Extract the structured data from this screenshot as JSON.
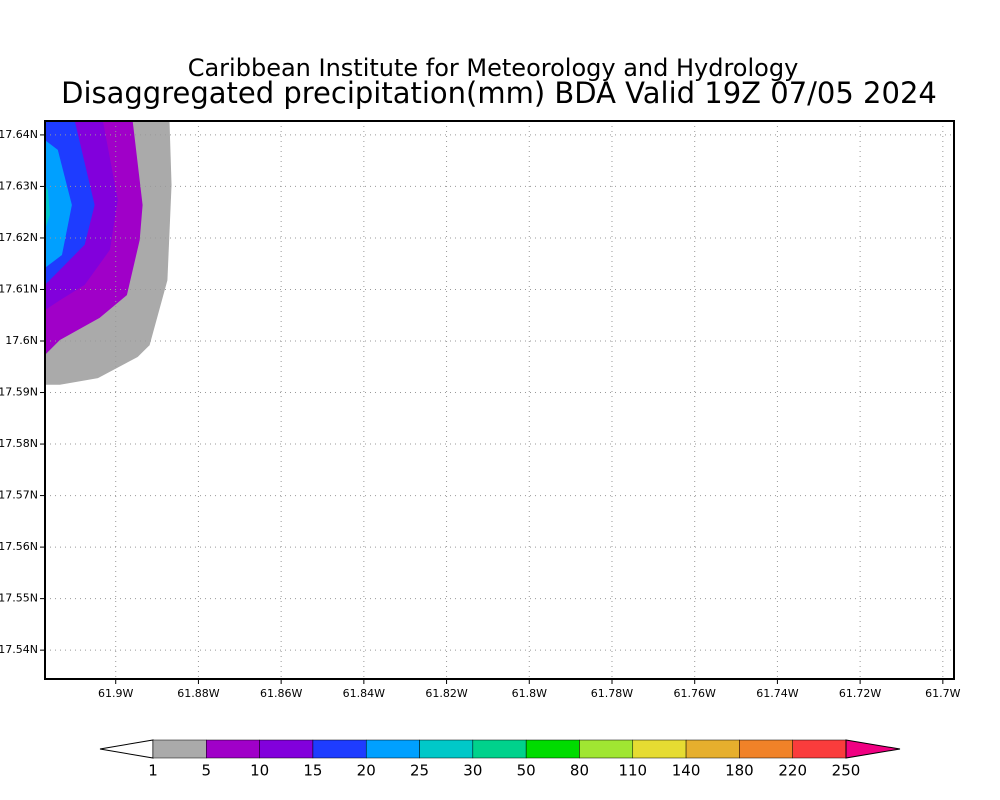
{
  "chart_data": {
    "type": "contour",
    "title": "Caribbean Institute for Meteorology and Hydrology",
    "subtitle": "Disaggregated precipitation(mm) BDA Valid 19Z 07/05 2024",
    "xlim": [
      -61.9171,
      -61.6973
    ],
    "ylim": [
      17.5344,
      17.6427
    ],
    "xticks": [
      {
        "value": -61.9,
        "label": "61.9W"
      },
      {
        "value": -61.88,
        "label": "61.88W"
      },
      {
        "value": -61.86,
        "label": "61.86W"
      },
      {
        "value": -61.84,
        "label": "61.84W"
      },
      {
        "value": -61.82,
        "label": "61.82W"
      },
      {
        "value": -61.8,
        "label": "61.8W"
      },
      {
        "value": -61.78,
        "label": "61.78W"
      },
      {
        "value": -61.76,
        "label": "61.76W"
      },
      {
        "value": -61.74,
        "label": "61.74W"
      },
      {
        "value": -61.72,
        "label": "61.72W"
      },
      {
        "value": -61.7,
        "label": "61.7W"
      }
    ],
    "yticks": [
      {
        "value": 17.64,
        "label": "17.64N"
      },
      {
        "value": 17.63,
        "label": "17.63N"
      },
      {
        "value": 17.62,
        "label": "17.62N"
      },
      {
        "value": 17.61,
        "label": "17.61N"
      },
      {
        "value": 17.6,
        "label": "17.6N"
      },
      {
        "value": 17.59,
        "label": "17.59N"
      },
      {
        "value": 17.58,
        "label": "17.58N"
      },
      {
        "value": 17.57,
        "label": "17.57N"
      },
      {
        "value": 17.56,
        "label": "17.56N"
      },
      {
        "value": 17.55,
        "label": "17.55N"
      },
      {
        "value": 17.54,
        "label": "17.54N"
      }
    ],
    "grid": true,
    "regions": [
      {
        "color": "#aaaaaa",
        "lon": [
          -61.9171,
          -61.887,
          -61.8865,
          -61.8875,
          -61.8918,
          -61.8947,
          -61.9043,
          -61.9135,
          -61.9171
        ],
        "lat": [
          17.6427,
          17.6427,
          17.6303,
          17.6118,
          17.5992,
          17.5969,
          17.5928,
          17.5915,
          17.5915
        ]
      },
      {
        "color": "#a000c8",
        "lon": [
          -61.9171,
          -61.8959,
          -61.8935,
          -61.8942,
          -61.8973,
          -61.9039,
          -61.9135,
          -61.9171
        ],
        "lat": [
          17.6427,
          17.6427,
          17.6264,
          17.6196,
          17.6089,
          17.6045,
          17.6002,
          17.5973
        ]
      },
      {
        "color": "#8200dc",
        "lon": [
          -61.9171,
          -61.9031,
          -61.8995,
          -61.9014,
          -61.9075,
          -61.9135,
          -61.9171
        ],
        "lat": [
          17.6427,
          17.6427,
          17.6274,
          17.6177,
          17.6109,
          17.6079,
          17.606
        ]
      },
      {
        "color": "#1e3cff",
        "lon": [
          -61.9171,
          -61.9099,
          -61.9051,
          -61.9075,
          -61.9135,
          -61.9171
        ],
        "lat": [
          17.6427,
          17.6427,
          17.6264,
          17.6187,
          17.6138,
          17.6109
        ]
      },
      {
        "color": "#00a0ff",
        "lon": [
          -61.9171,
          -61.914,
          -61.9106,
          -61.913,
          -61.9171
        ],
        "lat": [
          17.639,
          17.6371,
          17.6264,
          17.6167,
          17.6142
        ]
      },
      {
        "color": "#00c8c8",
        "lon": [
          -61.9171,
          -61.9164,
          -61.9159,
          -61.9171
        ],
        "lat": [
          17.6303,
          17.6293,
          17.6245,
          17.6216
        ]
      }
    ],
    "colorbar": {
      "levels": [
        1,
        5,
        10,
        15,
        20,
        25,
        30,
        50,
        80,
        110,
        140,
        180,
        220,
        250
      ],
      "colors": [
        "#ffffff",
        "#aaaaaa",
        "#a000c8",
        "#8200dc",
        "#1e3cff",
        "#00a0ff",
        "#00c8c8",
        "#00d28c",
        "#00dc00",
        "#a0e632",
        "#e6dc32",
        "#e6af2d",
        "#f08228",
        "#fa3c3c",
        "#f00082"
      ]
    }
  }
}
